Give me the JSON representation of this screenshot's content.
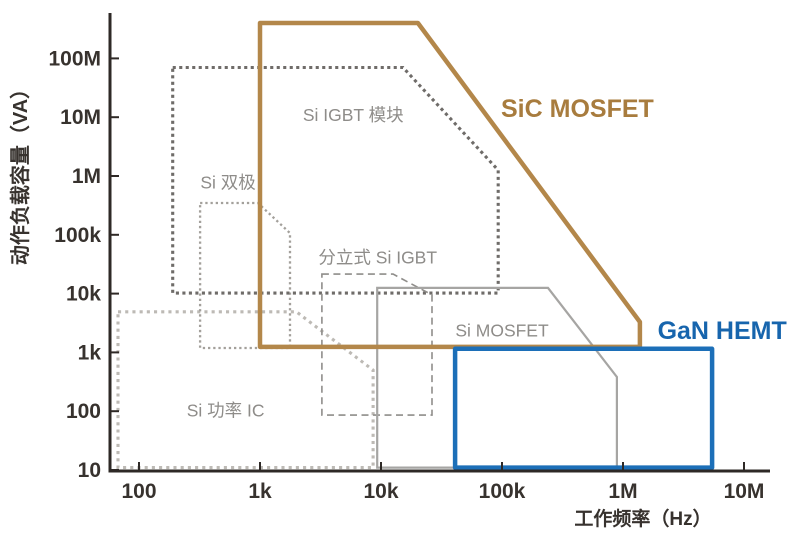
{
  "chart_data": {
    "type": "area",
    "subtype": "log-log-region-map",
    "title": "",
    "xlabel": "工作频率（Hz）",
    "ylabel": "动作负载容量（VA）",
    "x_log": true,
    "y_log": true,
    "xlim": [
      57,
      16000000
    ],
    "ylim": [
      10,
      600000000
    ],
    "grid": false,
    "axis_color": "#2E2926",
    "tick_label_color": "#37322E",
    "x_ticks": [
      {
        "value": 100,
        "label": "100"
      },
      {
        "value": 1000,
        "label": "1k"
      },
      {
        "value": 10000,
        "label": "10k"
      },
      {
        "value": 100000,
        "label": "100k"
      },
      {
        "value": 1000000,
        "label": "1M"
      },
      {
        "value": 10000000,
        "label": "10M"
      }
    ],
    "y_ticks": [
      {
        "value": 10,
        "label": "10"
      },
      {
        "value": 100,
        "label": "100"
      },
      {
        "value": 1000,
        "label": "1k"
      },
      {
        "value": 10000,
        "label": "10k"
      },
      {
        "value": 100000,
        "label": "100k"
      },
      {
        "value": 1000000,
        "label": "1M"
      },
      {
        "value": 10000000,
        "label": "10M"
      },
      {
        "value": 100000000,
        "label": "100M"
      }
    ],
    "regions": [
      {
        "id": "si-power-ic",
        "label": "Si 功率 IC",
        "line_style": "dotted-coarse",
        "color": "#BDBAB5",
        "label_color": "#8E8C89",
        "label_size": 17.5,
        "label_weight": 400,
        "label_pos": [
          520,
          105
        ],
        "vertices": [
          [
            67,
            4900
          ],
          [
            2000,
            4900
          ],
          [
            8600,
            500
          ],
          [
            8600,
            11
          ],
          [
            67,
            11
          ]
        ]
      },
      {
        "id": "si-bipolar",
        "label": "Si 双极",
        "line_style": "dotted-fine",
        "color": "#A3A09B",
        "label_color": "#8E8C89",
        "label_size": 17.5,
        "label_weight": 400,
        "label_pos": [
          545,
          790000
        ],
        "vertices": [
          [
            320,
            348000
          ],
          [
            960,
            348000
          ],
          [
            1770,
            107000
          ],
          [
            1770,
            1190
          ],
          [
            320,
            1190
          ]
        ]
      },
      {
        "id": "si-igbt-module",
        "label": "Si IGBT 模块",
        "line_style": "dotted-square",
        "color": "#6F6C69",
        "label_color": "#8E8C89",
        "label_size": 17.5,
        "label_weight": 400,
        "label_pos": [
          5900,
          11000000
        ],
        "vertices": [
          [
            190,
            70000000
          ],
          [
            15200,
            70000000
          ],
          [
            93000,
            1260000
          ],
          [
            93000,
            10200
          ],
          [
            190,
            10200
          ]
        ]
      },
      {
        "id": "discrete-si-igbt",
        "label": "分立式 Si IGBT",
        "line_style": "dashed",
        "color": "#8F8D8A",
        "label_color": "#8E8C89",
        "label_size": 17.5,
        "label_weight": 400,
        "label_pos": [
          9400,
          42000
        ],
        "vertices": [
          [
            3250,
            21500
          ],
          [
            12600,
            21500
          ],
          [
            26400,
            9500
          ],
          [
            26400,
            86
          ],
          [
            3250,
            86
          ]
        ]
      },
      {
        "id": "si-mosfet",
        "label": "Si MOSFET",
        "line_style": "solid",
        "color": "#A6A5A3",
        "label_color": "#8E8C89",
        "label_size": 17.5,
        "label_weight": 400,
        "label_pos": [
          100000,
          2400
        ],
        "vertices": [
          [
            9300,
            12500
          ],
          [
            240000,
            12500
          ],
          [
            890000,
            382
          ],
          [
            890000,
            11
          ],
          [
            9300,
            11
          ]
        ]
      },
      {
        "id": "sic-mosfet",
        "label": "SiC MOSFET",
        "line_style": "solid-thick",
        "color": "#B3874A",
        "label_color": "#A87C3E",
        "label_size": 25,
        "label_weight": 700,
        "label_pos": [
          420000,
          14300000
        ],
        "vertices": [
          [
            1000,
            400000000
          ],
          [
            20200,
            400000000
          ],
          [
            1380000,
            3290
          ],
          [
            1380000,
            1240
          ],
          [
            1000,
            1240
          ]
        ]
      },
      {
        "id": "gan-hemt",
        "label": "GaN HEMT",
        "line_style": "solid-thick",
        "color": "#1C6FB8",
        "label_color": "#1765AD",
        "label_size": 25,
        "label_weight": 700,
        "label_pos": [
          6600000,
          2400
        ],
        "vertices": [
          [
            41000,
            1150
          ],
          [
            5450000,
            1150
          ],
          [
            5450000,
            11
          ],
          [
            41000,
            11
          ]
        ]
      }
    ]
  }
}
